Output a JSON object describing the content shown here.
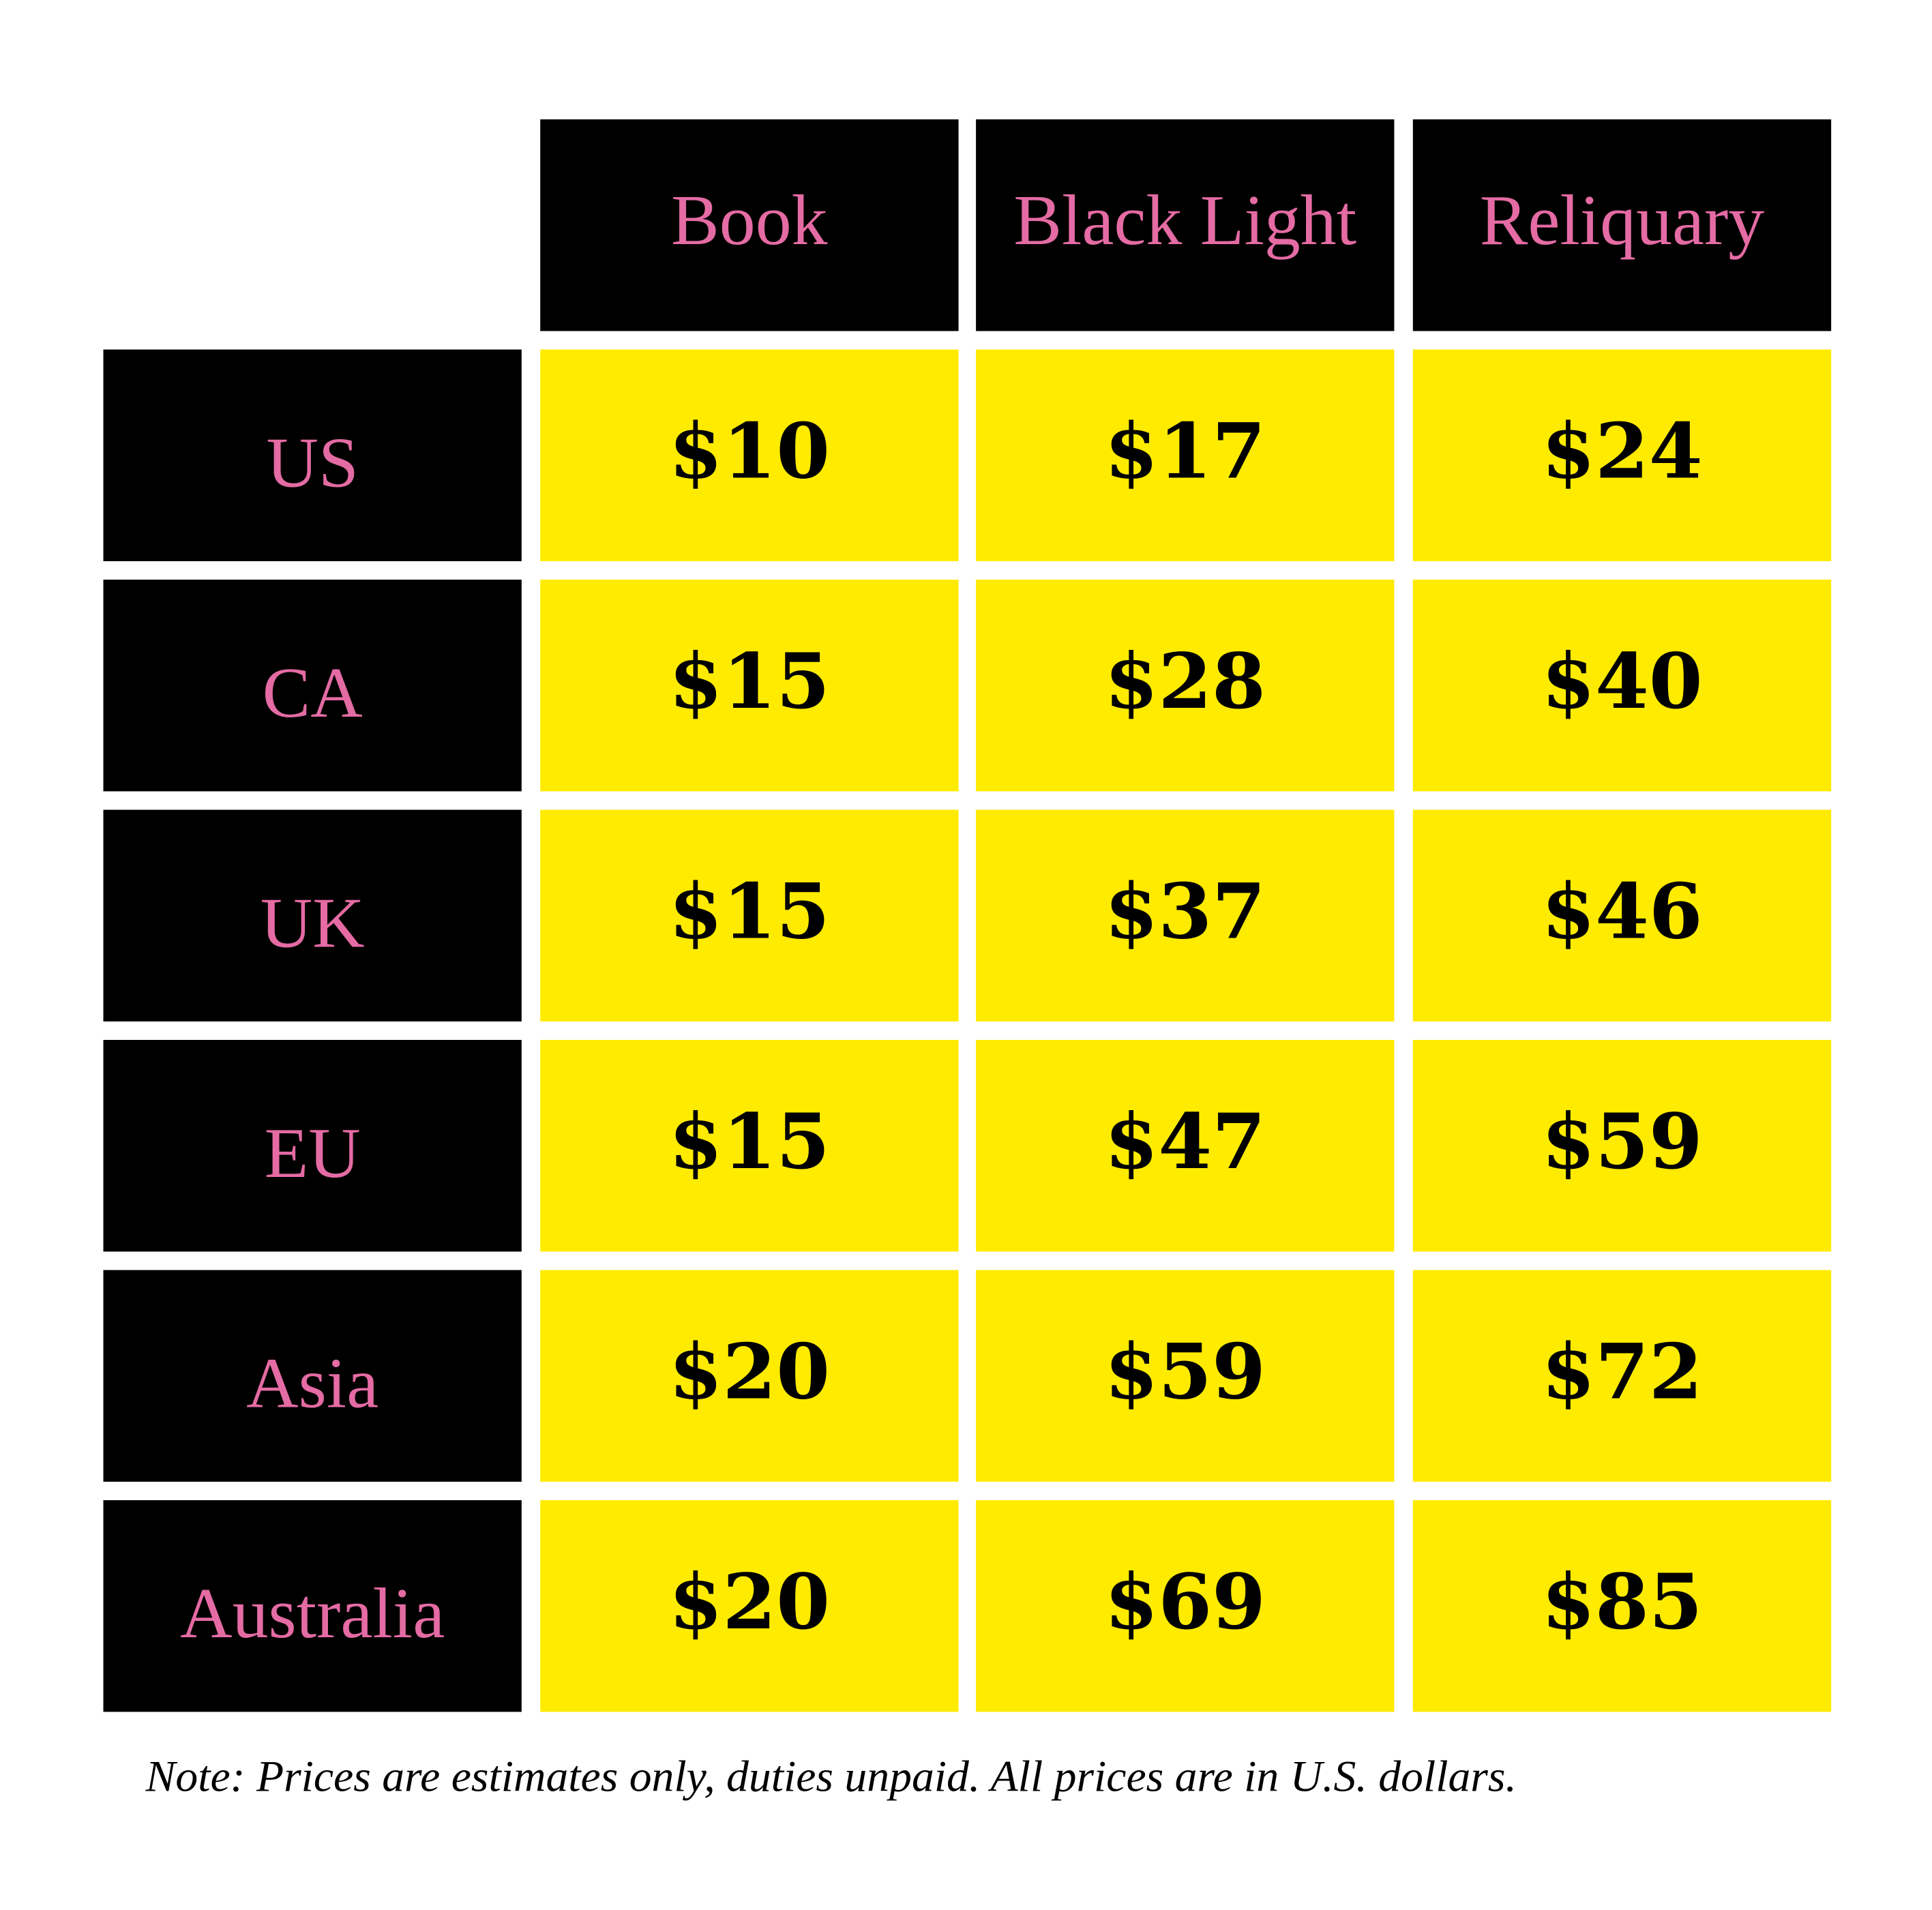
{
  "table": {
    "columns": [
      "Book",
      "Black Light",
      "Reliquary"
    ],
    "rows": [
      {
        "label": "US",
        "cells": [
          "$10",
          "$17",
          "$24"
        ]
      },
      {
        "label": "CA",
        "cells": [
          "$15",
          "$28",
          "$40"
        ]
      },
      {
        "label": "UK",
        "cells": [
          "$15",
          "$37",
          "$46"
        ]
      },
      {
        "label": "EU",
        "cells": [
          "$15",
          "$47",
          "$59"
        ]
      },
      {
        "label": "Asia",
        "cells": [
          "$20",
          "$59",
          "$72"
        ]
      },
      {
        "label": "Australia",
        "cells": [
          "$20",
          "$69",
          "$85"
        ]
      }
    ]
  },
  "note": "Note: Prices are estimates only, duties unpaid. All prices are in U.S. dollars."
}
